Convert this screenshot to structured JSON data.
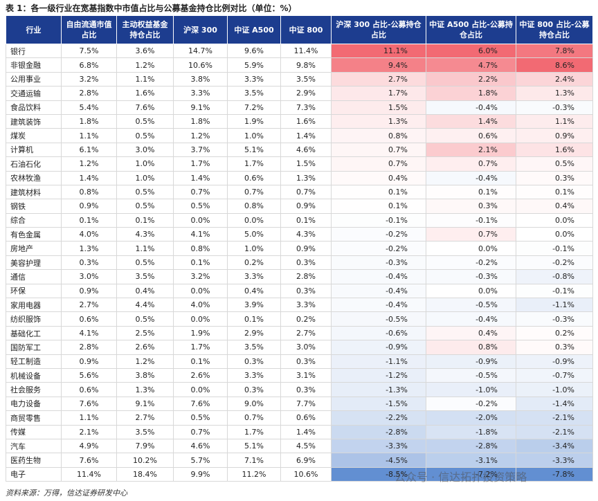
{
  "title": "表 1：各一级行业在宽基指数中市值占比与公募基金持仓比例对比（单位：%）",
  "table": {
    "header": [
      "行业",
      "自由流通市值占比",
      "主动权益基金持仓占比",
      "沪深 300",
      "中证 A500",
      "中证 800",
      "沪深 300 占比-公募持仓占比",
      "中证 A500 占比-公募持仓占比",
      "中证 800 占比-公募持仓占比"
    ],
    "rows": [
      [
        "银行",
        "7.5%",
        "3.6%",
        "14.7%",
        "9.6%",
        "11.4%",
        "11.1%",
        "6.0%",
        "7.8%"
      ],
      [
        "非银金融",
        "6.8%",
        "1.2%",
        "10.6%",
        "5.9%",
        "9.8%",
        "9.4%",
        "4.7%",
        "8.6%"
      ],
      [
        "公用事业",
        "3.2%",
        "1.1%",
        "3.8%",
        "3.3%",
        "3.5%",
        "2.7%",
        "2.2%",
        "2.4%"
      ],
      [
        "交通运输",
        "2.8%",
        "1.6%",
        "3.3%",
        "3.5%",
        "2.9%",
        "1.7%",
        "1.8%",
        "1.3%"
      ],
      [
        "食品饮料",
        "5.4%",
        "7.6%",
        "9.1%",
        "7.2%",
        "7.3%",
        "1.5%",
        "-0.4%",
        "-0.3%"
      ],
      [
        "建筑装饰",
        "1.8%",
        "0.5%",
        "1.8%",
        "1.9%",
        "1.6%",
        "1.3%",
        "1.4%",
        "1.1%"
      ],
      [
        "煤炭",
        "1.1%",
        "0.5%",
        "1.2%",
        "1.0%",
        "1.4%",
        "0.8%",
        "0.6%",
        "0.9%"
      ],
      [
        "计算机",
        "6.1%",
        "3.0%",
        "3.7%",
        "5.1%",
        "4.6%",
        "0.7%",
        "2.1%",
        "1.6%"
      ],
      [
        "石油石化",
        "1.2%",
        "1.0%",
        "1.7%",
        "1.7%",
        "1.5%",
        "0.7%",
        "0.7%",
        "0.5%"
      ],
      [
        "农林牧渔",
        "1.4%",
        "1.0%",
        "1.4%",
        "0.6%",
        "1.3%",
        "0.4%",
        "-0.4%",
        "0.3%"
      ],
      [
        "建筑材料",
        "0.8%",
        "0.5%",
        "0.7%",
        "0.7%",
        "0.7%",
        "0.1%",
        "0.1%",
        "0.1%"
      ],
      [
        "钢铁",
        "0.9%",
        "0.5%",
        "0.5%",
        "0.8%",
        "0.9%",
        "0.1%",
        "0.3%",
        "0.4%"
      ],
      [
        "综合",
        "0.1%",
        "0.1%",
        "0.0%",
        "0.0%",
        "0.1%",
        "-0.1%",
        "-0.1%",
        "0.0%"
      ],
      [
        "有色金属",
        "4.0%",
        "4.3%",
        "4.1%",
        "5.0%",
        "4.3%",
        "-0.2%",
        "0.7%",
        "0.0%"
      ],
      [
        "房地产",
        "1.3%",
        "1.1%",
        "0.8%",
        "1.0%",
        "0.9%",
        "-0.2%",
        "0.0%",
        "-0.1%"
      ],
      [
        "美容护理",
        "0.3%",
        "0.5%",
        "0.1%",
        "0.2%",
        "0.3%",
        "-0.3%",
        "-0.2%",
        "-0.2%"
      ],
      [
        "通信",
        "3.0%",
        "3.5%",
        "3.2%",
        "3.3%",
        "2.8%",
        "-0.4%",
        "-0.3%",
        "-0.8%"
      ],
      [
        "环保",
        "0.9%",
        "0.4%",
        "0.0%",
        "0.4%",
        "0.3%",
        "-0.4%",
        "0.0%",
        "-0.1%"
      ],
      [
        "家用电器",
        "2.7%",
        "4.4%",
        "4.0%",
        "3.9%",
        "3.3%",
        "-0.4%",
        "-0.5%",
        "-1.1%"
      ],
      [
        "纺织服饰",
        "0.6%",
        "0.5%",
        "0.0%",
        "0.1%",
        "0.2%",
        "-0.5%",
        "-0.4%",
        "-0.3%"
      ],
      [
        "基础化工",
        "4.1%",
        "2.5%",
        "1.9%",
        "2.9%",
        "2.7%",
        "-0.6%",
        "0.4%",
        "0.2%"
      ],
      [
        "国防军工",
        "2.8%",
        "2.6%",
        "1.7%",
        "3.5%",
        "3.0%",
        "-0.9%",
        "0.8%",
        "0.3%"
      ],
      [
        "轻工制造",
        "0.9%",
        "1.2%",
        "0.1%",
        "0.3%",
        "0.3%",
        "-1.1%",
        "-0.9%",
        "-0.9%"
      ],
      [
        "机械设备",
        "5.6%",
        "3.8%",
        "2.6%",
        "3.3%",
        "3.1%",
        "-1.2%",
        "-0.5%",
        "-0.7%"
      ],
      [
        "社会服务",
        "0.6%",
        "1.3%",
        "0.0%",
        "0.3%",
        "0.3%",
        "-1.3%",
        "-1.0%",
        "-1.0%"
      ],
      [
        "电力设备",
        "7.6%",
        "9.1%",
        "7.6%",
        "9.0%",
        "7.7%",
        "-1.5%",
        "-0.2%",
        "-1.4%"
      ],
      [
        "商贸零售",
        "1.1%",
        "2.7%",
        "0.5%",
        "0.7%",
        "0.6%",
        "-2.2%",
        "-2.0%",
        "-2.1%"
      ],
      [
        "传媒",
        "2.1%",
        "3.5%",
        "0.7%",
        "1.7%",
        "1.4%",
        "-2.8%",
        "-1.8%",
        "-2.1%"
      ],
      [
        "汽车",
        "4.9%",
        "7.9%",
        "4.6%",
        "5.1%",
        "4.5%",
        "-3.3%",
        "-2.8%",
        "-3.4%"
      ],
      [
        "医药生物",
        "7.6%",
        "10.2%",
        "5.7%",
        "7.1%",
        "6.9%",
        "-4.5%",
        "-3.1%",
        "-3.3%"
      ],
      [
        "电子",
        "11.4%",
        "18.4%",
        "9.9%",
        "11.2%",
        "10.6%",
        "-8.5%",
        "-7.2%",
        "-7.8%"
      ]
    ]
  },
  "source": "资料来源：万得，信达证券研发中心",
  "watermark": "公众号 · 信达拓扑投资策略"
}
